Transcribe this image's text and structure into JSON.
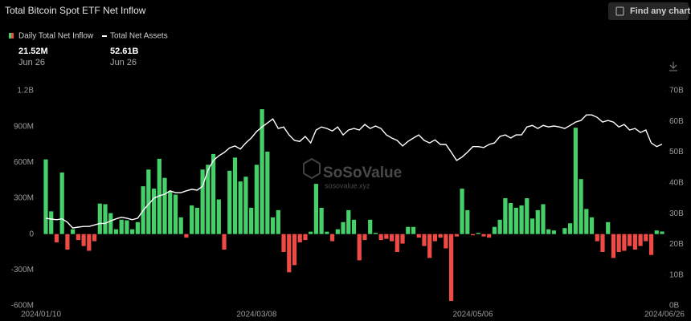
{
  "chart_data": {
    "type": "bar-line",
    "title": "Total Bitcoin Spot ETF Net Inflow",
    "button": "Find any chart",
    "watermark": [
      "SoSoValue",
      "sosovalue.xyz"
    ],
    "summary": [
      {
        "value": "21.52M",
        "date": "Jun 26"
      },
      {
        "value": "52.61B",
        "date": "Jun 26"
      }
    ],
    "categories": [
      "2024/01/10",
      null,
      null,
      null,
      null,
      null,
      null,
      null,
      null,
      null,
      null,
      null,
      null,
      null,
      null,
      null,
      null,
      null,
      null,
      null,
      null,
      null,
      null,
      null,
      null,
      null,
      null,
      null,
      null,
      null,
      null,
      null,
      null,
      null,
      null,
      null,
      null,
      null,
      null,
      "2024/03/08",
      null,
      null,
      null,
      null,
      null,
      null,
      null,
      null,
      null,
      null,
      null,
      null,
      null,
      null,
      null,
      null,
      null,
      null,
      null,
      null,
      null,
      null,
      null,
      null,
      null,
      null,
      null,
      null,
      null,
      null,
      null,
      null,
      null,
      null,
      null,
      null,
      null,
      null,
      null,
      "2024/05/06",
      null,
      null,
      null,
      null,
      null,
      null,
      null,
      null,
      null,
      null,
      null,
      null,
      null,
      null,
      null,
      null,
      null,
      null,
      null,
      null,
      null,
      null,
      null,
      null,
      null,
      null,
      null,
      null,
      null,
      null,
      null,
      null,
      null,
      null,
      "2024/06/26"
    ],
    "series": [
      {
        "name": "Daily Total Net Inflow",
        "kind": "bar",
        "positive_color": "#45d06a",
        "negative_color": "#f04a45",
        "values": [
          625,
          190,
          -70,
          515,
          -130,
          40,
          -50,
          -100,
          -140,
          -60,
          255,
          250,
          175,
          40,
          120,
          115,
          40,
          100,
          400,
          540,
          380,
          630,
          470,
          360,
          330,
          140,
          -30,
          240,
          220,
          540,
          580,
          670,
          290,
          -130,
          530,
          640,
          440,
          480,
          220,
          580,
          1045,
          690,
          140,
          200,
          -150,
          -320,
          -260,
          -70,
          -50,
          20,
          420,
          220,
          20,
          -60,
          40,
          100,
          200,
          120,
          -220,
          -50,
          120,
          10,
          -50,
          -40,
          -60,
          -150,
          -80,
          60,
          60,
          -30,
          -100,
          -200,
          -60,
          -30,
          -120,
          -560,
          -20,
          380,
          200,
          -10,
          10,
          -20,
          -30,
          60,
          120,
          300,
          260,
          220,
          240,
          300,
          130,
          200,
          250,
          40,
          30,
          0,
          50,
          90,
          890,
          460,
          210,
          140,
          -60,
          -150,
          100,
          -200,
          -150,
          -140,
          -100,
          -130,
          -100,
          -60,
          -175,
          30,
          21.52
        ]
      },
      {
        "name": "Total Net Assets",
        "kind": "line",
        "axis": "y2",
        "color": "#ffffff",
        "values": [
          28.5,
          28.2,
          28.0,
          28.3,
          27.2,
          25.3,
          25.6,
          25.8,
          25.8,
          26.3,
          26.8,
          26.8,
          27.6,
          28.3,
          28.8,
          28.5,
          28.0,
          28.5,
          31.0,
          33.0,
          35.0,
          35.8,
          36.3,
          37.4,
          36.8,
          36.8,
          37.4,
          37.9,
          37.6,
          38.9,
          44.1,
          47.3,
          48.8,
          49.9,
          51.4,
          52.0,
          51.0,
          53.0,
          54.6,
          56.7,
          58.2,
          59.5,
          60.8,
          57.7,
          58.2,
          55.6,
          53.8,
          53.5,
          55.1,
          53.0,
          57.2,
          58.2,
          57.7,
          56.9,
          58.2,
          55.6,
          57.2,
          57.7,
          57.2,
          59.0,
          57.7,
          58.5,
          57.7,
          55.6,
          54.6,
          53.8,
          52.0,
          53.5,
          54.6,
          55.6,
          53.8,
          53.0,
          54.0,
          52.5,
          52.5,
          50.0,
          47.3,
          48.4,
          50.0,
          51.8,
          51.8,
          51.5,
          52.5,
          53.0,
          55.1,
          55.6,
          54.6,
          55.6,
          55.6,
          58.2,
          58.7,
          57.7,
          58.7,
          58.2,
          58.5,
          58.2,
          57.7,
          58.7,
          59.8,
          60.3,
          62.1,
          62.1,
          61.3,
          59.8,
          60.3,
          59.8,
          58.2,
          59.0,
          57.2,
          57.7,
          56.4,
          57.2,
          53.0,
          51.8,
          52.61
        ]
      }
    ],
    "ylim": [
      -600,
      1200
    ],
    "yticks": [
      {
        "value": 1200,
        "label": "1.2B"
      },
      {
        "value": 900,
        "label": "900M"
      },
      {
        "value": 600,
        "label": "600M"
      },
      {
        "value": 300,
        "label": "300M"
      },
      0,
      {
        "value": -300,
        "label": "-300M"
      },
      {
        "value": -600,
        "label": "-600M"
      }
    ],
    "y2lim": [
      0,
      70
    ],
    "y2ticks": [
      {
        "value": 70,
        "label": "70B"
      },
      {
        "value": 60,
        "label": "60B"
      },
      {
        "value": 50,
        "label": "50B"
      },
      {
        "value": 40,
        "label": "40B"
      },
      {
        "value": 30,
        "label": "30B"
      },
      {
        "value": 20,
        "label": "20B"
      },
      {
        "value": 10,
        "label": "10B"
      },
      {
        "value": 0,
        "label": "0B"
      }
    ],
    "grid": false
  }
}
